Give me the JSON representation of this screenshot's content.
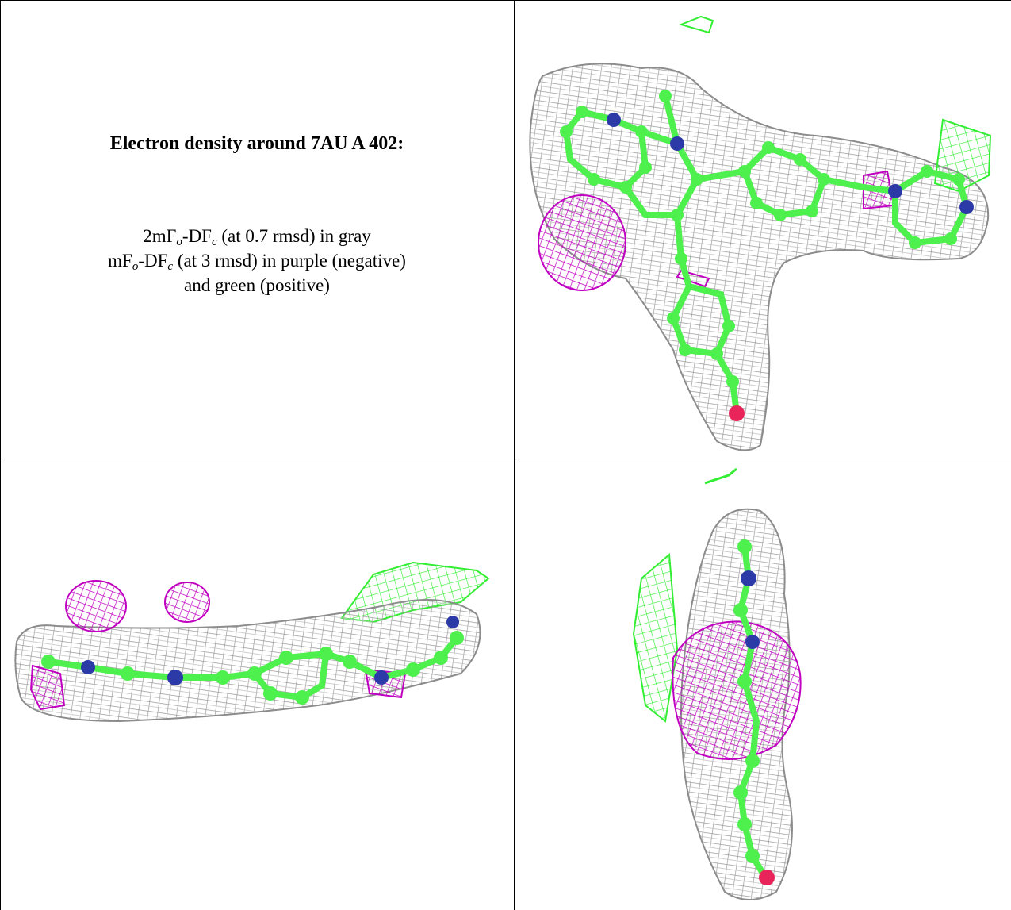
{
  "caption": {
    "title": "Electron density around 7AU A 402:",
    "line1": {
      "a": "2mF",
      "sub1": "o",
      "b": "-DF",
      "sub2": "c",
      "rest": " (at 0.7 rmsd) in gray"
    },
    "line2": {
      "a": "mF",
      "sub1": "o",
      "b": "-DF",
      "sub2": "c",
      "rest": " (at 3 rmsd) in purple (negative)"
    },
    "line3": "and green (positive)"
  },
  "colors": {
    "map_2fofc": "#9a9a9a",
    "map_negative": "#c000c0",
    "map_positive": "#33ee33",
    "carbon": "#4ef04e",
    "nitrogen": "#2c3aa8",
    "oxygen": "#e8245a"
  },
  "panels": [
    {
      "id": "top-right",
      "view": "front"
    },
    {
      "id": "bottom-left",
      "view": "side"
    },
    {
      "id": "bottom-right",
      "view": "end-on"
    }
  ]
}
